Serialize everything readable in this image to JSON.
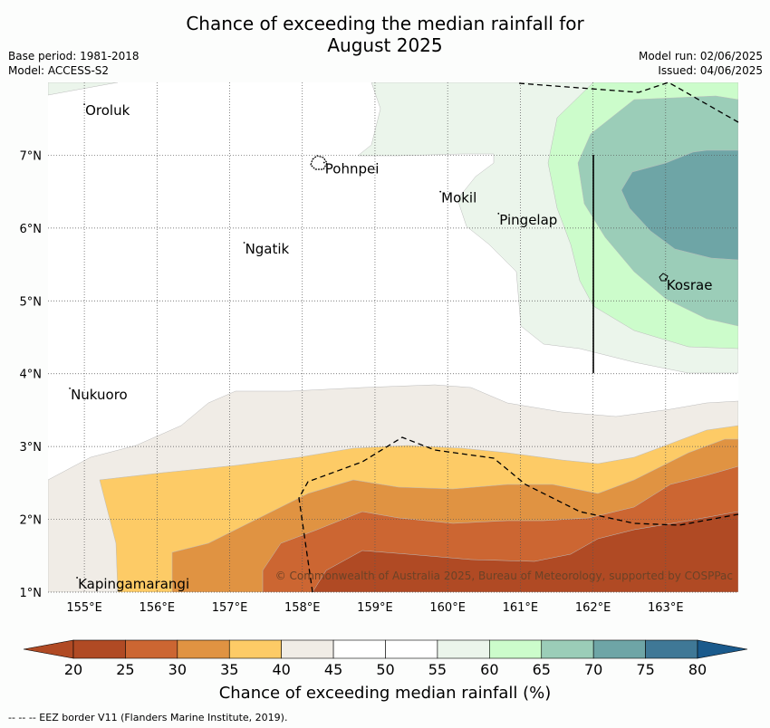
{
  "title": {
    "line1": "Chance of exceeding the median rainfall for",
    "line2": "August 2025"
  },
  "meta": {
    "base_period": "Base period: 1981-2018",
    "model": "Model: ACCESS-S2",
    "model_run": "Model run: 02/06/2025",
    "issued": "Issued: 04/06/2025"
  },
  "map": {
    "lon_range": [
      154.5,
      164.0
    ],
    "lat_range": [
      1.0,
      8.0
    ],
    "lon_ticks": [
      "155°E",
      "156°E",
      "157°E",
      "158°E",
      "159°E",
      "160°E",
      "161°E",
      "162°E",
      "163°E"
    ],
    "lat_ticks": [
      "1°N",
      "2°N",
      "3°N",
      "4°N",
      "5°N",
      "6°N",
      "7°N"
    ],
    "places": [
      {
        "name": "Oroluk",
        "lon": 155.0,
        "lat": 7.6
      },
      {
        "name": "Pohnpei",
        "lon": 158.3,
        "lat": 6.8
      },
      {
        "name": "Mokil",
        "lon": 159.9,
        "lat": 6.4
      },
      {
        "name": "Pingelap",
        "lon": 160.7,
        "lat": 6.1
      },
      {
        "name": "Ngatik",
        "lon": 157.2,
        "lat": 5.7
      },
      {
        "name": "Kosrae",
        "lon": 163.0,
        "lat": 5.2
      },
      {
        "name": "Nukuoro",
        "lon": 154.8,
        "lat": 3.7
      },
      {
        "name": "Kapingamarangi",
        "lon": 154.9,
        "lat": 1.1
      }
    ],
    "copyright": "© Commonwealth of Australia 2025, Bureau of Meteorology, supported by COSPPac",
    "colors": {
      "c20": "#b04a24",
      "c25": "#cc6632",
      "c30": "#e09342",
      "c35": "#fdcb66",
      "c40": "#f0ece6",
      "c45": "#ffffff",
      "c50": "#ffffff",
      "c55": "#ebf5eb",
      "c60": "#ccfccb",
      "c65": "#9bcdb8",
      "c70": "#6ea5a6",
      "c75": "#3f7896",
      "c80": "#1a5a8c"
    }
  },
  "colorbar": {
    "ticks": [
      "20",
      "25",
      "30",
      "35",
      "40",
      "45",
      "50",
      "55",
      "60",
      "65",
      "70",
      "75",
      "80"
    ],
    "label": "Chance of exceeding median rainfall (%)"
  },
  "footer": "--  --  -- EEZ border V11 (Flanders Marine Institute, 2019)."
}
